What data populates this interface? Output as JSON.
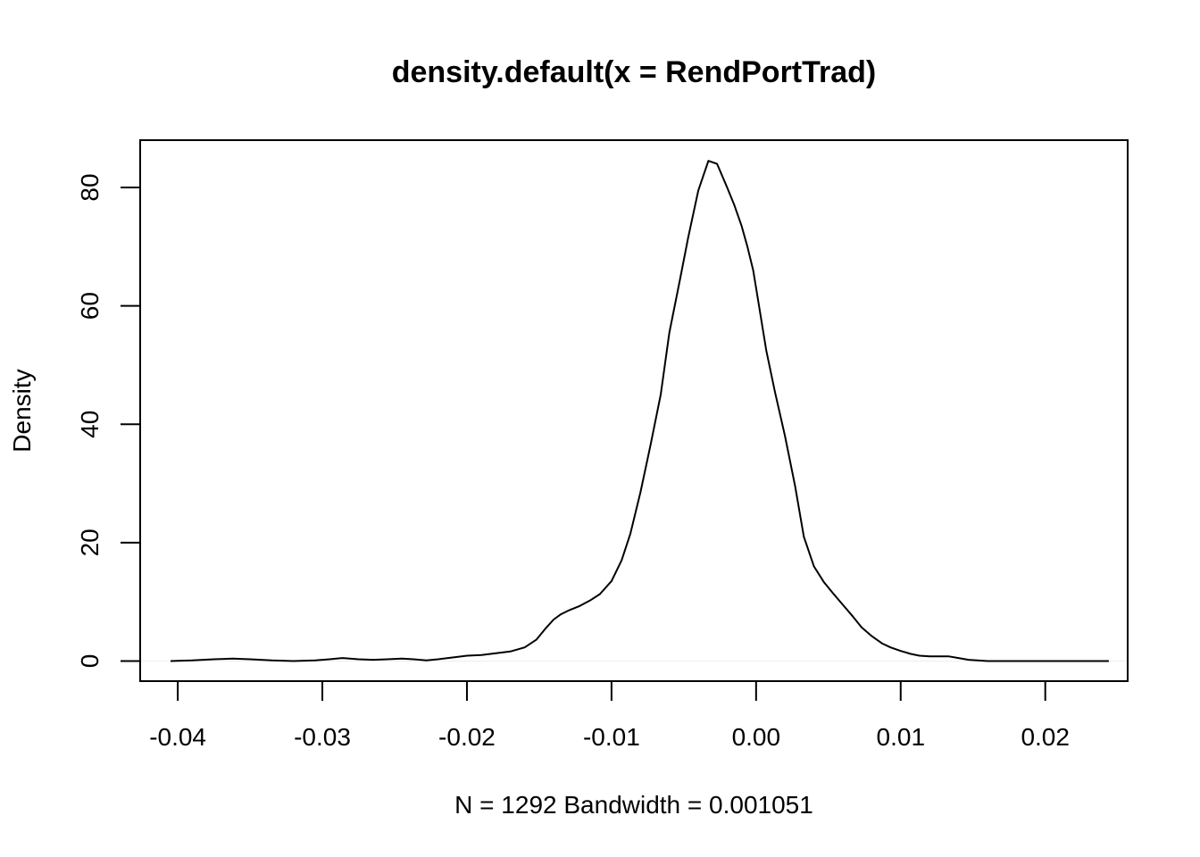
{
  "chart_data": {
    "type": "line",
    "title": "density.default(x = RendPortTrad)",
    "xlabel": "N = 1292   Bandwidth = 0.001051",
    "ylabel": "Density",
    "xlim": [
      -0.0426,
      0.0257
    ],
    "ylim": [
      -3.4,
      88.0
    ],
    "x_ticks": [
      -0.04,
      -0.03,
      -0.02,
      -0.01,
      0.0,
      0.01,
      0.02
    ],
    "x_tick_labels": [
      "-0.04",
      "-0.03",
      "-0.02",
      "-0.01",
      "0.00",
      "0.01",
      "0.02"
    ],
    "y_ticks": [
      0,
      20,
      40,
      60,
      80
    ],
    "y_tick_labels": [
      "0",
      "20",
      "40",
      "60",
      "80"
    ],
    "grid": false,
    "baseline_y": 0,
    "line_color": "#000000",
    "series": [
      {
        "x": [
          -0.0405,
          -0.039,
          -0.0375,
          -0.0362,
          -0.035,
          -0.0335,
          -0.032,
          -0.0305,
          -0.0295,
          -0.0286,
          -0.0275,
          -0.0265,
          -0.0255,
          -0.0245,
          -0.0237,
          -0.0228,
          -0.022,
          -0.021,
          -0.02,
          -0.019,
          -0.018,
          -0.017,
          -0.016,
          -0.0152,
          -0.0146,
          -0.014,
          -0.0135,
          -0.013,
          -0.0122,
          -0.0115,
          -0.0108,
          -0.01,
          -0.0093,
          -0.0087,
          -0.008,
          -0.0073,
          -0.0066,
          -0.006,
          -0.0053,
          -0.0047,
          -0.004,
          -0.0033,
          -0.0027,
          -0.002,
          -0.0015,
          -0.001,
          -0.0006,
          -0.0002,
          0.0002,
          0.0007,
          0.0013,
          0.002,
          0.0027,
          0.0033,
          0.004,
          0.0047,
          0.0053,
          0.006,
          0.0067,
          0.0073,
          0.008,
          0.0087,
          0.0093,
          0.01,
          0.0107,
          0.0113,
          0.012,
          0.0127,
          0.0133,
          0.014,
          0.0147,
          0.0153,
          0.016,
          0.0167,
          0.0175,
          0.0185,
          0.0195,
          0.0205,
          0.0212,
          0.022,
          0.0232,
          0.0244
        ],
        "y": [
          0.0,
          0.1,
          0.3,
          0.4,
          0.3,
          0.1,
          0.0,
          0.1,
          0.3,
          0.5,
          0.3,
          0.2,
          0.3,
          0.4,
          0.3,
          0.1,
          0.3,
          0.6,
          0.9,
          1.0,
          1.3,
          1.6,
          2.3,
          3.6,
          5.4,
          7.0,
          7.9,
          8.5,
          9.3,
          10.2,
          11.3,
          13.5,
          17.0,
          21.5,
          28.5,
          36.5,
          45.0,
          55.5,
          64.0,
          71.5,
          79.5,
          84.5,
          84.0,
          80.0,
          77.0,
          73.5,
          70.0,
          66.0,
          60.0,
          52.5,
          45.5,
          38.0,
          29.5,
          21.0,
          16.0,
          13.3,
          11.5,
          9.5,
          7.5,
          5.7,
          4.2,
          3.0,
          2.3,
          1.7,
          1.2,
          0.9,
          0.8,
          0.8,
          0.8,
          0.5,
          0.2,
          0.1,
          0.0,
          0.0,
          0.0,
          0.0,
          0.0,
          0.0,
          0.0,
          0.0,
          0.0,
          0.0
        ]
      }
    ]
  }
}
